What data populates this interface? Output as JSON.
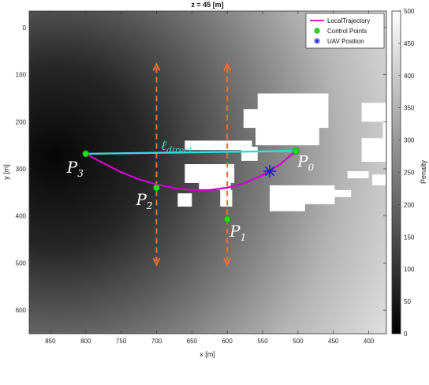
{
  "chart_data": {
    "type": "heatmap",
    "title": "z = 45 [m]",
    "xlabel": "x [m]",
    "ylabel": "y [m]",
    "xlim": [
      880,
      375
    ],
    "ylim": [
      -35,
      650
    ],
    "x_reversed": true,
    "y_reversed": true,
    "xticks": [
      850,
      800,
      750,
      700,
      650,
      600,
      550,
      500,
      450,
      400
    ],
    "yticks": [
      0,
      100,
      200,
      300,
      400,
      500,
      600
    ],
    "colorbar": {
      "label": "Penalty",
      "range": [
        0,
        500
      ],
      "ticks": [
        0,
        50,
        100,
        150,
        200,
        250,
        300,
        350,
        400,
        450,
        500
      ],
      "colormap": "gray"
    },
    "legend": {
      "position": "top-right",
      "entries": [
        {
          "label": "LocalTrajectory",
          "color": "#cc00cc",
          "marker": "line"
        },
        {
          "label": "Control Points",
          "color": "#22dd22",
          "marker": "circle"
        },
        {
          "label": "UAV Position",
          "color": "#1a1acc",
          "marker": "asterisk"
        }
      ]
    },
    "series": [
      {
        "name": "LocalTrajectory",
        "type": "line",
        "color": "#cc00cc",
        "points": [
          {
            "x": 800,
            "y": 268
          },
          {
            "x": 775,
            "y": 288
          },
          {
            "x": 750,
            "y": 307
          },
          {
            "x": 725,
            "y": 322
          },
          {
            "x": 700,
            "y": 333
          },
          {
            "x": 675,
            "y": 341
          },
          {
            "x": 650,
            "y": 345
          },
          {
            "x": 625,
            "y": 345
          },
          {
            "x": 600,
            "y": 340
          },
          {
            "x": 575,
            "y": 330
          },
          {
            "x": 550,
            "y": 313
          },
          {
            "x": 525,
            "y": 290
          },
          {
            "x": 503,
            "y": 262
          }
        ]
      },
      {
        "name": "Control Points",
        "type": "scatter",
        "color": "#22dd22",
        "points": [
          {
            "x": 503,
            "y": 262,
            "label_base": "P",
            "label_sub": "0"
          },
          {
            "x": 600,
            "y": 407,
            "label_base": "P",
            "label_sub": "1"
          },
          {
            "x": 700,
            "y": 340,
            "label_base": "P",
            "label_sub": "2"
          },
          {
            "x": 800,
            "y": 268,
            "label_base": "P",
            "label_sub": "3"
          }
        ]
      },
      {
        "name": "UAV Position",
        "type": "scatter",
        "color": "#1a1acc",
        "points": [
          {
            "x": 540,
            "y": 305
          }
        ]
      }
    ],
    "annotations": {
      "direct_line": {
        "from": {
          "x": 800,
          "y": 268
        },
        "to": {
          "x": 503,
          "y": 262
        },
        "color": "#33dddd",
        "label_base": "ℓ",
        "label_sub": "direct"
      },
      "dashed_arrows": [
        {
          "x": 700,
          "y_top": 78,
          "y_bottom": 503,
          "color": "#f07030"
        },
        {
          "x": 600,
          "y_top": 78,
          "y_bottom": 503,
          "color": "#f07030"
        }
      ]
    },
    "obstacles": [
      {
        "x0": 577,
        "x1": 457,
        "y0": 173,
        "y1": 213
      },
      {
        "x0": 660,
        "x1": 565,
        "y0": 240,
        "y1": 260
      },
      {
        "x0": 560,
        "x1": 470,
        "y0": 210,
        "y1": 250
      },
      {
        "x0": 557,
        "x1": 457,
        "y0": 140,
        "y1": 177
      },
      {
        "x0": 580,
        "x1": 557,
        "y0": 253,
        "y1": 283
      },
      {
        "x0": 660,
        "x1": 590,
        "y0": 290,
        "y1": 330
      },
      {
        "x0": 640,
        "x1": 595,
        "y0": 320,
        "y1": 345
      },
      {
        "x0": 610,
        "x1": 593,
        "y0": 345,
        "y1": 380
      },
      {
        "x0": 670,
        "x1": 650,
        "y0": 352,
        "y1": 380
      },
      {
        "x0": 540,
        "x1": 490,
        "y0": 335,
        "y1": 390
      },
      {
        "x0": 500,
        "x1": 448,
        "y0": 335,
        "y1": 375
      },
      {
        "x0": 450,
        "x1": 425,
        "y0": 345,
        "y1": 360
      },
      {
        "x0": 430,
        "x1": 400,
        "y0": 305,
        "y1": 320
      },
      {
        "x0": 395,
        "x1": 376,
        "y0": 312,
        "y1": 335
      },
      {
        "x0": 410,
        "x1": 376,
        "y0": 160,
        "y1": 200
      },
      {
        "x0": 380,
        "x1": 376,
        "y0": 190,
        "y1": 240
      },
      {
        "x0": 410,
        "x1": 376,
        "y0": 235,
        "y1": 285
      }
    ]
  }
}
